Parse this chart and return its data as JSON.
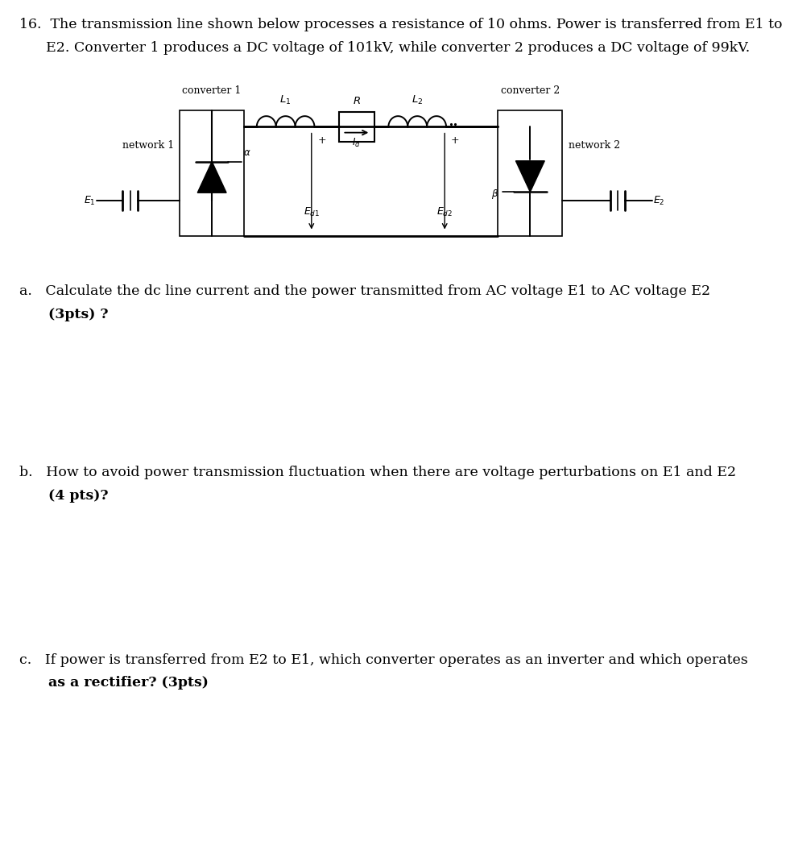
{
  "bg_color": "#ffffff",
  "text_color": "#000000",
  "title_line1": "16.  The transmission line shown below processes a resistance of 10 ohms. Power is transferred from E1 to",
  "title_line2": "      E2. Converter 1 produces a DC voltage of 101kV, while converter 2 produces a DC voltage of 99kV.",
  "qa_line1": "a.   Calculate the dc line current and the power transmitted from AC voltage E1 to AC voltage E2",
  "qa_line2": "      (3pts) ?",
  "qb_line1": "b.   How to avoid power transmission fluctuation when there are voltage perturbations on E1 and E2",
  "qb_line2": "      (4 pts)?",
  "qc_line1": "c.   If power is transferred from E2 to E1, which converter operates as an inverter and which operates",
  "qc_line2": "      as a rectifier? (3pts)",
  "font_size_title": 12.5,
  "font_size_q": 12.5
}
